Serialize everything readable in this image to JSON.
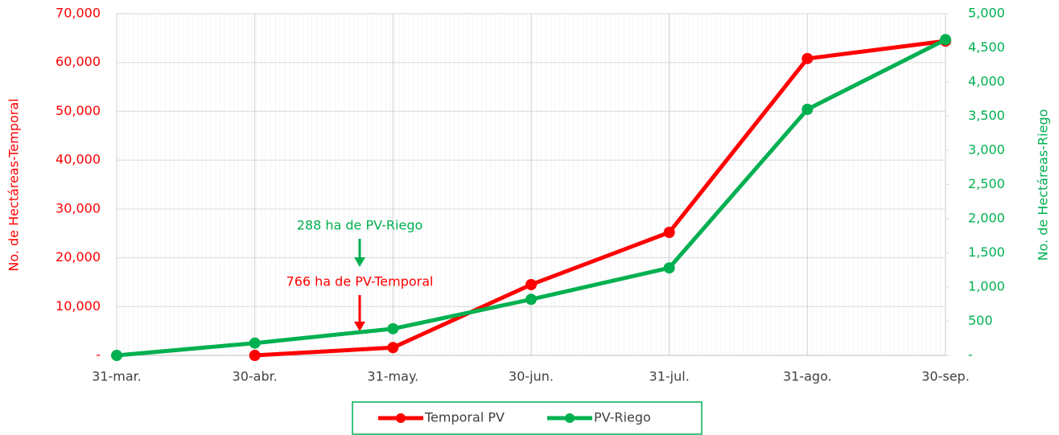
{
  "chart_data": {
    "type": "line",
    "categories": [
      "31-mar.",
      "30-abr.",
      "31-may.",
      "30-jun.",
      "31-jul.",
      "31-ago.",
      "30-sep."
    ],
    "series": [
      {
        "name": "Temporal PV",
        "color": "#ff0000",
        "values": [
          null,
          0,
          1600,
          14500,
          25200,
          60800,
          64400
        ]
      },
      {
        "name": "PV-Riego",
        "color": "#00b050",
        "axis": "y2",
        "values": [
          0,
          180,
          390,
          820,
          1280,
          3600,
          4620
        ]
      }
    ],
    "ylabel": "No. de Hectáreas-Temporal",
    "y2label": "No. de Hectáreas-Riego",
    "ylim": [
      0,
      70000
    ],
    "yticks": [
      {
        "value": 0,
        "label": "-"
      },
      {
        "value": 10000,
        "label": "10,000"
      },
      {
        "value": 20000,
        "label": "20,000"
      },
      {
        "value": 30000,
        "label": "30,000"
      },
      {
        "value": 40000,
        "label": "40,000"
      },
      {
        "value": 50000,
        "label": "50,000"
      },
      {
        "value": 60000,
        "label": "60,000"
      },
      {
        "value": 70000,
        "label": "70,000"
      }
    ],
    "y2lim": [
      0,
      5000
    ],
    "y2ticks": [
      {
        "value": 0,
        "label": "-"
      },
      500,
      {
        "value": 1000,
        "label": "1,000"
      },
      {
        "value": 1500,
        "label": "1,500"
      },
      {
        "value": 2000,
        "label": "2,000"
      },
      {
        "value": 2500,
        "label": "2,500"
      },
      {
        "value": 3000,
        "label": "3,000"
      },
      {
        "value": 3500,
        "label": "3,500"
      },
      {
        "value": 4000,
        "label": "4,000"
      },
      {
        "value": 4500,
        "label": "4,500"
      },
      {
        "value": 5000,
        "label": "5,000"
      }
    ],
    "annotations": [
      {
        "text": "288 ha de PV-Riego",
        "color": "#00b050"
      },
      {
        "text": "766 ha de PV-Temporal",
        "color": "#ff0000"
      }
    ],
    "grid": true,
    "legend": "bottom"
  }
}
